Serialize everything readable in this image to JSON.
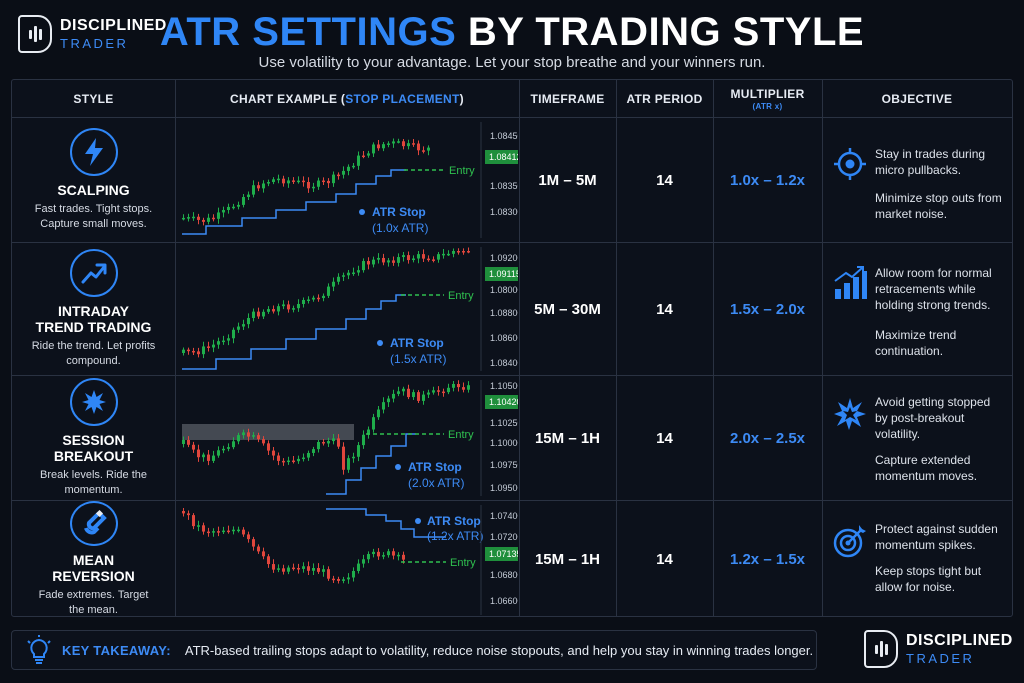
{
  "brand": {
    "line1": "DISCIPLINED",
    "line2": "TRADER"
  },
  "title": {
    "part1": "ATR SETTINGS",
    "part2": "BY TRADING STYLE"
  },
  "subtitle": "Use volatility to your advantage. Let your stop breathe and your winners run.",
  "headers": {
    "style": "STYLE",
    "chart_prefix": "CHART EXAMPLE (",
    "chart_highlight": "STOP PLACEMENT",
    "chart_suffix": ")",
    "timeframe": "TIMEFRAME",
    "atr_period": "ATR PERIOD",
    "multiplier": "MULTIPLIER",
    "multiplier_sub": "(ATR x)",
    "objective": "OBJECTIVE"
  },
  "rows": [
    {
      "name_l1": "SCALPING",
      "name_l2": "",
      "desc_l1": "Fast trades. Tight stops.",
      "desc_l2": "Capture small moves.",
      "icon": "lightning-icon",
      "timeframe": "1M – 5M",
      "atr_period": "14",
      "multiplier": "1.0x – 1.2x",
      "obj1": "Stay in trades during micro pullbacks.",
      "obj2": "Minimize stop outs from market noise.",
      "obj_icon": "target-icon",
      "chart": {
        "price_labels": [
          "1.08450",
          "1.08350",
          "1.08300"
        ],
        "current_price": "1.08412",
        "stop_label_l1": "ATR Stop",
        "stop_label_l2": "(1.0x ATR)",
        "entry_label": "Entry"
      }
    },
    {
      "name_l1": "INTRADAY",
      "name_l2": "TREND TRADING",
      "desc_l1": "Ride the trend. Let profits",
      "desc_l2": "compound.",
      "icon": "trend-up-icon",
      "timeframe": "5M – 30M",
      "atr_period": "14",
      "multiplier": "1.5x – 2.0x",
      "obj1": "Allow room for normal retracements while holding strong trends.",
      "obj2": "Maximize trend continuation.",
      "obj_icon": "bar-chart-up-icon",
      "chart": {
        "price_labels": [
          "1.09200",
          "1.08000",
          "1.08800",
          "1.08600",
          "1.08400"
        ],
        "current_price": "1.09115",
        "stop_label_l1": "ATR Stop",
        "stop_label_l2": "(1.5x ATR)",
        "entry_label": "Entry"
      }
    },
    {
      "name_l1": "SESSION",
      "name_l2": "BREAKOUT",
      "desc_l1": "Break levels. Ride the",
      "desc_l2": "momentum.",
      "icon": "burst-icon",
      "timeframe": "15M – 1H",
      "atr_period": "14",
      "multiplier": "2.0x – 2.5x",
      "obj1": "Avoid getting stopped by post-breakout volatility.",
      "obj2": "Capture extended momentum moves.",
      "obj_icon": "explosion-icon",
      "chart": {
        "price_labels": [
          "1.10500",
          "1.10250",
          "1.10000",
          "1.09750",
          "1.09500"
        ],
        "current_price": "1.10420",
        "stop_label_l1": "ATR Stop",
        "stop_label_l2": "(2.0x ATR)",
        "entry_label": "Entry"
      }
    },
    {
      "name_l1": "MEAN",
      "name_l2": "REVERSION",
      "desc_l1": "Fade extremes. Target",
      "desc_l2": "the mean.",
      "icon": "magnet-icon",
      "timeframe": "15M – 1H",
      "atr_period": "14",
      "multiplier": "1.2x – 1.5x",
      "obj1": "Protect against sudden momentum spikes.",
      "obj2": "Keep stops tight but allow for noise.",
      "obj_icon": "bullseye-arrow-icon",
      "chart": {
        "price_labels": [
          "1.07400",
          "1.07200",
          "1.06800",
          "1.06600"
        ],
        "current_price": "1.07135",
        "stop_label_l1": "ATR Stop",
        "stop_label_l2": "(1.2x ATR)",
        "entry_label": "Entry"
      }
    }
  ],
  "footer": {
    "title": "KEY TAKEAWAY:",
    "text": "ATR-based trailing stops adapt to volatility, reduce noise stopouts, and help you stay in winning trades longer."
  },
  "colors": {
    "accent": "#2f86f6",
    "bull": "#1fae4b",
    "bear": "#e0463c",
    "entry": "#2fc04f",
    "stop": "#3d8bf5"
  }
}
